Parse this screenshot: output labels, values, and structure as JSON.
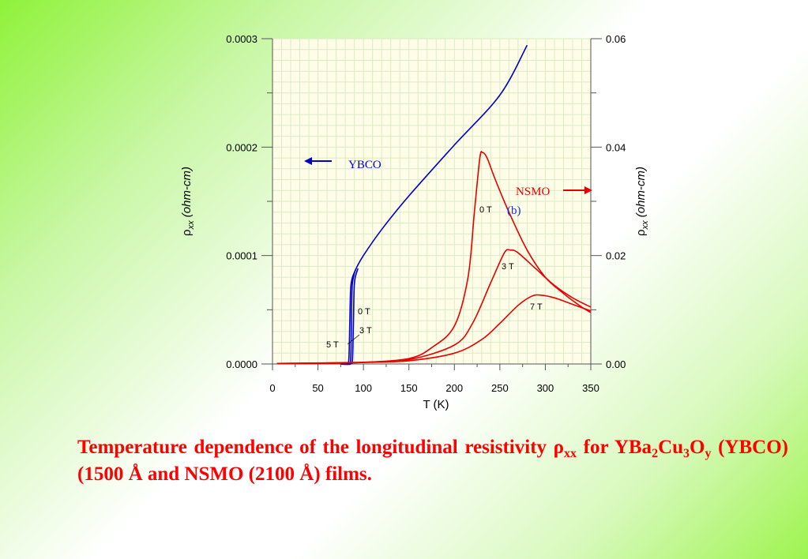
{
  "chart_data": {
    "type": "line",
    "xlabel": "T (K)",
    "ylabel_left_sym": "ρ",
    "ylabel_left_sub": "xx",
    "ylabel_left_unit": " (ohm-cm)",
    "ylabel_right_sym": "ρ",
    "ylabel_right_sub": "xx",
    "ylabel_right_unit": " (ohm-cm)",
    "xlim": [
      0,
      350
    ],
    "ylim_left": [
      0,
      0.0003
    ],
    "ylim_right": [
      0,
      0.06
    ],
    "x_ticks": [
      "0",
      "50",
      "100",
      "150",
      "200",
      "250",
      "300",
      "350"
    ],
    "y_ticks_left": [
      "0.0000",
      "0.0001",
      "0.0002",
      "0.0003"
    ],
    "y_ticks_right": [
      "0.00",
      "0.02",
      "0.04",
      "0.06"
    ],
    "grid": true,
    "colors": {
      "ybco": "#0000cc",
      "nsmo": "#e60000",
      "plot_bg": "#fffde8",
      "grid": "#d9ecc4"
    },
    "series": [
      {
        "group": "YBCO",
        "name": "0 T",
        "axis": "left",
        "points": [
          [
            78,
            0
          ],
          [
            84,
            0
          ],
          [
            86,
            5e-06
          ],
          [
            86.8,
            4e-05
          ],
          [
            87.5,
            7e-05
          ],
          [
            89,
            8e-05
          ],
          [
            92,
            8.8e-05
          ],
          [
            100,
            0.0001
          ],
          [
            120,
            0.000124
          ],
          [
            150,
            0.000155
          ],
          [
            200,
            0.000202
          ],
          [
            250,
            0.000248
          ],
          [
            280,
            0.000294
          ]
        ]
      },
      {
        "group": "YBCO",
        "name": "3 T",
        "axis": "left",
        "points": [
          [
            80,
            0
          ],
          [
            86,
            0
          ],
          [
            88,
            5e-06
          ],
          [
            89,
            4e-05
          ],
          [
            89.8,
            7e-05
          ],
          [
            91,
            8e-05
          ],
          [
            94,
            8.8e-05
          ]
        ]
      },
      {
        "group": "YBCO",
        "name": "5 T",
        "axis": "left",
        "points": [
          [
            75,
            0
          ],
          [
            82,
            0
          ],
          [
            84,
            5e-06
          ],
          [
            85,
            4e-05
          ],
          [
            86,
            7e-05
          ],
          [
            88,
            8e-05
          ],
          [
            92,
            8.8e-05
          ]
        ]
      },
      {
        "group": "NSMO",
        "name": "0 T",
        "axis": "right",
        "points": [
          [
            5,
            0.0001
          ],
          [
            50,
            0.0001
          ],
          [
            100,
            0.0003
          ],
          [
            150,
            0.001
          ],
          [
            175,
            0.003
          ],
          [
            200,
            0.007
          ],
          [
            215,
            0.016
          ],
          [
            222,
            0.028
          ],
          [
            228,
            0.038
          ],
          [
            231,
            0.039
          ],
          [
            236,
            0.038
          ],
          [
            245,
            0.034
          ],
          [
            260,
            0.028
          ],
          [
            280,
            0.021
          ],
          [
            300,
            0.016
          ],
          [
            320,
            0.013
          ],
          [
            340,
            0.0105
          ],
          [
            350,
            0.0095
          ]
        ]
      },
      {
        "group": "NSMO",
        "name": "3 T",
        "axis": "right",
        "points": [
          [
            5,
            0.0001
          ],
          [
            100,
            0.0003
          ],
          [
            150,
            0.0008
          ],
          [
            200,
            0.0035
          ],
          [
            220,
            0.0075
          ],
          [
            240,
            0.015
          ],
          [
            255,
            0.0205
          ],
          [
            262,
            0.021
          ],
          [
            270,
            0.0205
          ],
          [
            290,
            0.0175
          ],
          [
            310,
            0.0145
          ],
          [
            330,
            0.0122
          ],
          [
            350,
            0.0105
          ]
        ]
      },
      {
        "group": "NSMO",
        "name": "7 T",
        "axis": "right",
        "points": [
          [
            5,
            0.0001
          ],
          [
            100,
            0.0003
          ],
          [
            150,
            0.0006
          ],
          [
            200,
            0.002
          ],
          [
            230,
            0.0045
          ],
          [
            250,
            0.0075
          ],
          [
            270,
            0.0108
          ],
          [
            285,
            0.0125
          ],
          [
            295,
            0.0127
          ],
          [
            310,
            0.0122
          ],
          [
            330,
            0.011
          ],
          [
            350,
            0.0098
          ]
        ]
      }
    ],
    "annotations": {
      "ybco": "YBCO",
      "nsmo": "NSMO",
      "panel": "(b)",
      "ybco_0t": "0 T",
      "ybco_3t": "3 T",
      "ybco_5t": "5 T",
      "nsmo_0t": "0 T",
      "nsmo_3t": "3 T",
      "nsmo_7t": "7 T"
    }
  },
  "caption": {
    "line1_text": "Temperature dependence of the longitudinal resistivity ",
    "rho": "ρ",
    "rho_sub": "xx",
    "line1_end": " for",
    "line2_a": "YBa",
    "sub_2": "2",
    "line2_b": "Cu",
    "sub_3": "3",
    "line2_c": "O",
    "sub_y": "y",
    "line2_d": " (YBCO) (1500 Å and NSMO (2100 Å) films."
  }
}
